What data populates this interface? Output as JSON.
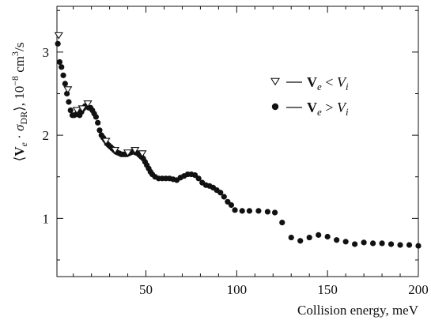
{
  "chart_data": {
    "type": "scatter",
    "title": "",
    "xlabel": "Collision energy, meV",
    "ylabel": "⟨V_e · σ_DR⟩, 10^−8 cm^3/s",
    "xlim": [
      1,
      200
    ],
    "ylim": [
      0.3,
      3.55
    ],
    "x_ticks": [
      50,
      100,
      150,
      200
    ],
    "y_ticks": [
      1,
      2,
      3
    ],
    "grid": false,
    "legend_position": "right",
    "series": [
      {
        "name": "V_e < V_i",
        "marker": "open-triangle-down",
        "points": [
          [
            2,
            3.2
          ],
          [
            7,
            2.55
          ],
          [
            12,
            2.3
          ],
          [
            15,
            2.32
          ],
          [
            18,
            2.38
          ],
          [
            28,
            1.93
          ],
          [
            33,
            1.82
          ],
          [
            40,
            1.79
          ],
          [
            44,
            1.82
          ],
          [
            48,
            1.78
          ]
        ]
      },
      {
        "name": "V_e > V_i",
        "marker": "filled-circle",
        "points": [
          [
            1.5,
            3.1
          ],
          [
            2.5,
            2.88
          ],
          [
            3.5,
            2.82
          ],
          [
            4.5,
            2.72
          ],
          [
            5.5,
            2.62
          ],
          [
            6.5,
            2.5
          ],
          [
            7.5,
            2.4
          ],
          [
            8.5,
            2.3
          ],
          [
            9.5,
            2.24
          ],
          [
            10.5,
            2.24
          ],
          [
            11.5,
            2.25
          ],
          [
            12.5,
            2.27
          ],
          [
            13.5,
            2.24
          ],
          [
            14.5,
            2.28
          ],
          [
            15.5,
            2.32
          ],
          [
            16.5,
            2.35
          ],
          [
            17.5,
            2.35
          ],
          [
            18.5,
            2.33
          ],
          [
            19.5,
            2.33
          ],
          [
            20.5,
            2.3
          ],
          [
            21.5,
            2.26
          ],
          [
            22.5,
            2.22
          ],
          [
            23.5,
            2.15
          ],
          [
            24.5,
            2.06
          ],
          [
            25.5,
            2.0
          ],
          [
            26.5,
            1.97
          ],
          [
            27.5,
            1.94
          ],
          [
            28.5,
            1.9
          ],
          [
            29.5,
            1.88
          ],
          [
            30.5,
            1.86
          ],
          [
            31.5,
            1.84
          ],
          [
            32.5,
            1.82
          ],
          [
            33.5,
            1.8
          ],
          [
            34.5,
            1.79
          ],
          [
            35.5,
            1.78
          ],
          [
            36.5,
            1.77
          ],
          [
            37.5,
            1.77
          ],
          [
            38.5,
            1.77
          ],
          [
            39.5,
            1.77
          ],
          [
            40.5,
            1.78
          ],
          [
            41.5,
            1.79
          ],
          [
            42.5,
            1.8
          ],
          [
            43.5,
            1.8
          ],
          [
            44.5,
            1.79
          ],
          [
            45.5,
            1.78
          ],
          [
            46.5,
            1.76
          ],
          [
            47.5,
            1.74
          ],
          [
            48.5,
            1.72
          ],
          [
            49.5,
            1.68
          ],
          [
            50.5,
            1.64
          ],
          [
            51.5,
            1.6
          ],
          [
            52.5,
            1.56
          ],
          [
            53.5,
            1.53
          ],
          [
            55,
            1.5
          ],
          [
            57,
            1.48
          ],
          [
            59,
            1.48
          ],
          [
            61,
            1.48
          ],
          [
            63,
            1.48
          ],
          [
            65,
            1.47
          ],
          [
            67,
            1.46
          ],
          [
            69,
            1.49
          ],
          [
            71,
            1.51
          ],
          [
            73,
            1.53
          ],
          [
            75,
            1.53
          ],
          [
            77,
            1.52
          ],
          [
            79,
            1.48
          ],
          [
            81,
            1.43
          ],
          [
            83,
            1.4
          ],
          [
            85,
            1.39
          ],
          [
            87,
            1.37
          ],
          [
            89,
            1.34
          ],
          [
            91,
            1.31
          ],
          [
            93,
            1.26
          ],
          [
            95,
            1.2
          ],
          [
            97,
            1.16
          ],
          [
            99,
            1.1
          ],
          [
            103,
            1.09
          ],
          [
            107,
            1.09
          ],
          [
            112,
            1.09
          ],
          [
            117,
            1.08
          ],
          [
            121,
            1.07
          ],
          [
            125,
            0.95
          ],
          [
            130,
            0.77
          ],
          [
            135,
            0.73
          ],
          [
            140,
            0.77
          ],
          [
            145,
            0.8
          ],
          [
            150,
            0.78
          ],
          [
            155,
            0.74
          ],
          [
            160,
            0.72
          ],
          [
            165,
            0.69
          ],
          [
            170,
            0.71
          ],
          [
            175,
            0.7
          ],
          [
            180,
            0.7
          ],
          [
            185,
            0.69
          ],
          [
            190,
            0.68
          ],
          [
            195,
            0.68
          ],
          [
            200,
            0.67
          ]
        ]
      }
    ]
  }
}
